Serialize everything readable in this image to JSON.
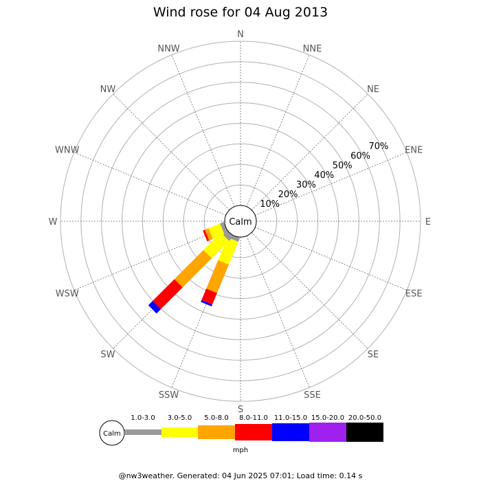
{
  "chart_data": {
    "type": "wind-rose",
    "title": "Wind rose for 04 Aug 2013",
    "calm_label": "Calm",
    "directions": [
      "N",
      "NNE",
      "NE",
      "ENE",
      "E",
      "ESE",
      "SE",
      "SSE",
      "S",
      "SSW",
      "SW",
      "WSW",
      "W",
      "WNW",
      "NW",
      "NNW"
    ],
    "radial_ticks": [
      "10%",
      "20%",
      "30%",
      "40%",
      "50%",
      "60%",
      "70%"
    ],
    "radial_max": 80,
    "speed_bins": [
      {
        "label": "1.0-3.0",
        "color": "#999999"
      },
      {
        "label": "3.0-5.0",
        "color": "#ffff00"
      },
      {
        "label": "5.0-8.0",
        "color": "#ffa500"
      },
      {
        "label": "8.0-11.0",
        "color": "#ff0000"
      },
      {
        "label": "11.0-15.0",
        "color": "#0000ff"
      },
      {
        "label": "15.0-20.0",
        "color": "#a020f0"
      },
      {
        "label": "20.0-50.0",
        "color": "#000000"
      }
    ],
    "units": "mph",
    "series": [
      {
        "direction": "SSW",
        "values": [
          2,
          12,
          15,
          6,
          1,
          0,
          0
        ]
      },
      {
        "direction": "SW",
        "values": [
          3,
          12,
          20,
          15,
          3,
          0,
          0
        ]
      },
      {
        "direction": "WSW",
        "values": [
          2,
          6,
          2,
          1,
          0,
          0,
          0
        ]
      }
    ]
  },
  "footer": "@nw3weather. Generated: 04 Jun 2025 07:01; Load time: 0.14 s"
}
